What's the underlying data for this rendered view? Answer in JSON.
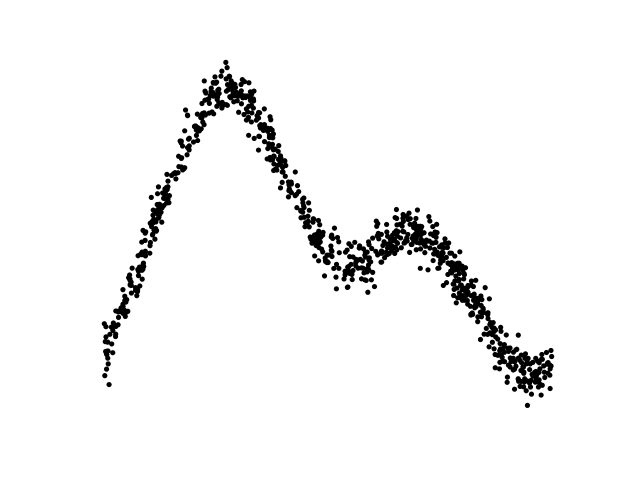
{
  "chart_data": {
    "type": "scatter",
    "title": "",
    "xlabel": "",
    "ylabel": "",
    "axes_visible": false,
    "grid": false,
    "legend": "none",
    "point_color": "#000000",
    "xlim": [
      0,
      100
    ],
    "ylim": [
      0,
      100
    ],
    "point_count": 900,
    "series": [
      {
        "name": "",
        "trend": [
          {
            "x": 0,
            "y": 16
          },
          {
            "x": 6,
            "y": 36
          },
          {
            "x": 12,
            "y": 58
          },
          {
            "x": 18,
            "y": 78
          },
          {
            "x": 24,
            "y": 93
          },
          {
            "x": 27,
            "y": 96
          },
          {
            "x": 31,
            "y": 93
          },
          {
            "x": 35,
            "y": 85
          },
          {
            "x": 40,
            "y": 71
          },
          {
            "x": 45,
            "y": 57
          },
          {
            "x": 50,
            "y": 47
          },
          {
            "x": 54,
            "y": 43
          },
          {
            "x": 58,
            "y": 44
          },
          {
            "x": 62,
            "y": 49
          },
          {
            "x": 66,
            "y": 54
          },
          {
            "x": 70,
            "y": 53
          },
          {
            "x": 75,
            "y": 47
          },
          {
            "x": 80,
            "y": 38
          },
          {
            "x": 85,
            "y": 27
          },
          {
            "x": 90,
            "y": 16
          },
          {
            "x": 94,
            "y": 10
          },
          {
            "x": 97,
            "y": 12
          },
          {
            "x": 100,
            "y": 14
          }
        ],
        "spread": 3.5
      }
    ]
  }
}
